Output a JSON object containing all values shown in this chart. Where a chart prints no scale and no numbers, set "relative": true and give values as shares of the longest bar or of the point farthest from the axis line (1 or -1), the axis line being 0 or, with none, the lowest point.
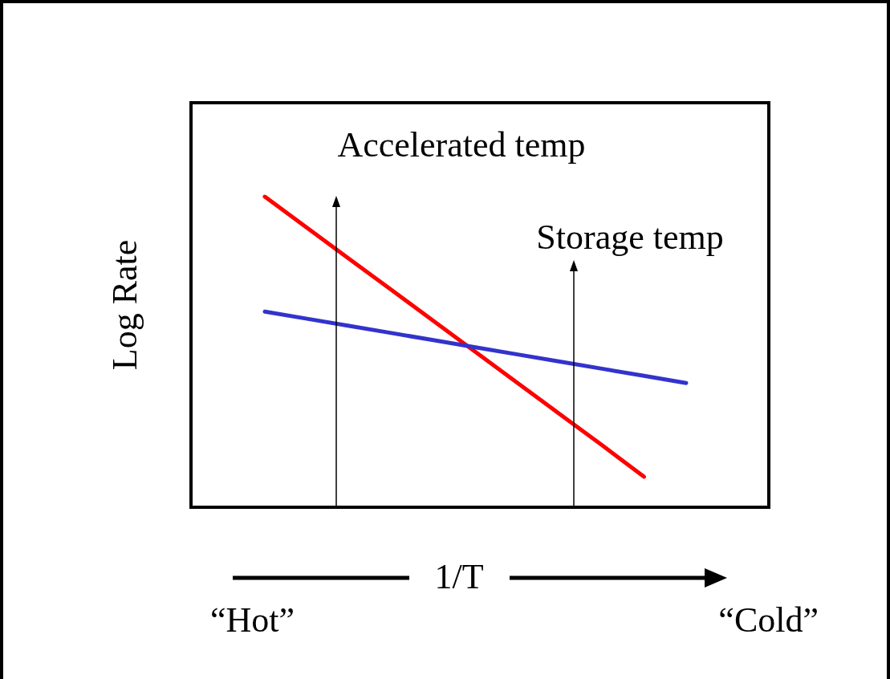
{
  "chart_data": {
    "type": "line",
    "relative": true,
    "xlabel": "1/T",
    "ylabel": "Log Rate",
    "categories": [
      null,
      null,
      null,
      null,
      null,
      null,
      null,
      null,
      null,
      null,
      null
    ],
    "series": [
      {
        "color": "#ff0000",
        "values": [
          1,
          0.9,
          0.8,
          0.7,
          0.6,
          0.5,
          0.4,
          0.3,
          0.2,
          0.098,
          null
        ]
      },
      {
        "color": "#3333cc",
        "values": [
          0.63,
          0.607,
          0.584,
          0.561,
          0.538,
          0.515,
          0.492,
          0.469,
          0.446,
          0.423,
          0.4
        ]
      }
    ],
    "annotations": [
      "Accelerated temp",
      "Storage temp",
      "“Hot”",
      "“Cold”"
    ],
    "marker": "none",
    "line_style": "solid"
  }
}
